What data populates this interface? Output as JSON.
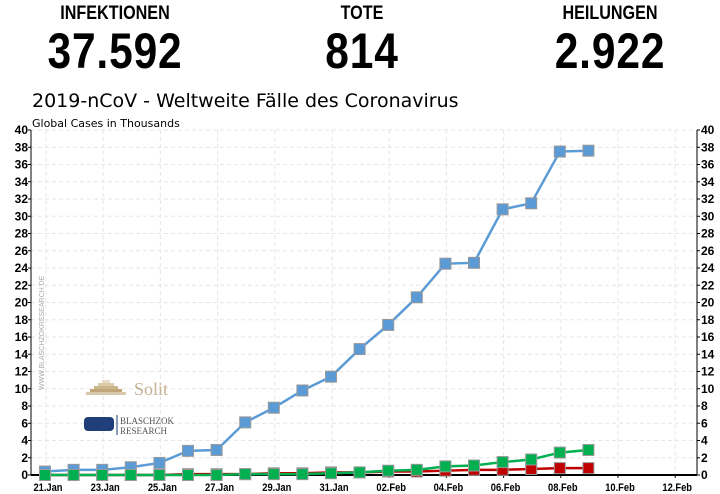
{
  "header": {
    "stats": [
      {
        "label": "INFEKTIONEN",
        "value": "37.592"
      },
      {
        "label": "TOTE",
        "value": "814"
      },
      {
        "label": "HEILUNGEN",
        "value": "2.922"
      }
    ]
  },
  "chart_data": {
    "type": "line",
    "title": "2019-nCoV - Weltweite Fälle des Coronavirus",
    "ylabel": "Global Cases in Thousands",
    "ylim": [
      0,
      40
    ],
    "yticks": [
      0,
      2,
      4,
      6,
      8,
      10,
      12,
      14,
      16,
      18,
      20,
      22,
      24,
      26,
      28,
      30,
      32,
      34,
      36,
      38,
      40
    ],
    "xlim_days": [
      0,
      22
    ],
    "xtick_labels": [
      "21.Jan",
      "23.Jan",
      "25.Jan",
      "27.Jan",
      "29.Jan",
      "31.Jan",
      "02.Feb",
      "04.Feb",
      "06.Feb",
      "08.Feb",
      "10.Feb",
      "12.Feb"
    ],
    "x_days": [
      0,
      1,
      2,
      3,
      4,
      5,
      6,
      7,
      8,
      9,
      10,
      11,
      12,
      13,
      14,
      15,
      16,
      17,
      18,
      19
    ],
    "grid": true,
    "series": [
      {
        "name": "Infektionen",
        "color": "#5b9bd5",
        "values": [
          0.4,
          0.6,
          0.6,
          0.9,
          1.4,
          2.8,
          2.9,
          6.1,
          7.8,
          9.8,
          11.4,
          14.6,
          17.4,
          20.6,
          24.5,
          24.6,
          30.8,
          31.5,
          37.5,
          37.6
        ]
      },
      {
        "name": "Tote",
        "color": "#c00000",
        "values": [
          0,
          0,
          0,
          0,
          0,
          0.1,
          0.1,
          0.1,
          0.2,
          0.2,
          0.3,
          0.3,
          0.4,
          0.4,
          0.5,
          0.6,
          0.6,
          0.7,
          0.8,
          0.8
        ]
      },
      {
        "name": "Heilungen",
        "color": "#00b050",
        "values": [
          0,
          0,
          0,
          0,
          0,
          0,
          0,
          0.1,
          0.1,
          0.1,
          0.2,
          0.3,
          0.5,
          0.6,
          1.0,
          1.1,
          1.5,
          1.8,
          2.6,
          2.9
        ]
      }
    ]
  },
  "watermark": {
    "url": "WWW.BLASCHZOKRESEARCH.DE",
    "logo1": "Solit",
    "logo2a": "BLASCHZOK",
    "logo2b": "RESEARCH"
  }
}
